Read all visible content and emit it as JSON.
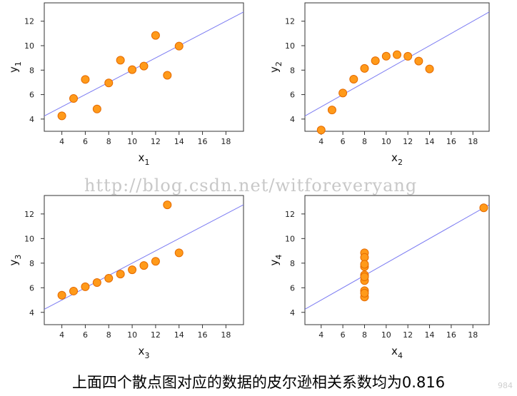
{
  "watermark": "http://blog.csdn.net/witforeveryang",
  "caption": "上面四个散点图对应的数据的皮尔逊相关系数均为0.816",
  "corner_mark": "984",
  "colors": {
    "point_fill": "#ff9a1a",
    "point_stroke": "#e56a00",
    "fit_line": "#7b7bf2"
  },
  "chart_data": [
    {
      "type": "scatter",
      "xlabel": "x",
      "xlabel_sub": "1",
      "ylabel": "y",
      "ylabel_sub": "1",
      "xlim": [
        2.5,
        19.5
      ],
      "ylim": [
        3,
        13.5
      ],
      "xticks": [
        4,
        6,
        8,
        10,
        12,
        14,
        16,
        18
      ],
      "yticks": [
        4,
        6,
        8,
        10,
        12
      ],
      "x": [
        10,
        8,
        13,
        9,
        11,
        14,
        6,
        4,
        12,
        7,
        5
      ],
      "y": [
        8.04,
        6.95,
        7.58,
        8.81,
        8.33,
        9.96,
        7.24,
        4.26,
        10.84,
        4.82,
        5.68
      ],
      "fit": {
        "intercept": 3.0,
        "slope": 0.5
      }
    },
    {
      "type": "scatter",
      "xlabel": "x",
      "xlabel_sub": "2",
      "ylabel": "y",
      "ylabel_sub": "2",
      "xlim": [
        2.5,
        19.5
      ],
      "ylim": [
        3,
        13.5
      ],
      "xticks": [
        4,
        6,
        8,
        10,
        12,
        14,
        16,
        18
      ],
      "yticks": [
        4,
        6,
        8,
        10,
        12
      ],
      "x": [
        10,
        8,
        13,
        9,
        11,
        14,
        6,
        4,
        12,
        7,
        5
      ],
      "y": [
        9.14,
        8.14,
        8.74,
        8.77,
        9.26,
        8.1,
        6.13,
        3.1,
        9.13,
        7.26,
        4.74
      ],
      "fit": {
        "intercept": 3.0,
        "slope": 0.5
      }
    },
    {
      "type": "scatter",
      "xlabel": "x",
      "xlabel_sub": "3",
      "ylabel": "y",
      "ylabel_sub": "3",
      "xlim": [
        2.5,
        19.5
      ],
      "ylim": [
        3,
        13.5
      ],
      "xticks": [
        4,
        6,
        8,
        10,
        12,
        14,
        16,
        18
      ],
      "yticks": [
        4,
        6,
        8,
        10,
        12
      ],
      "x": [
        10,
        8,
        13,
        9,
        11,
        14,
        6,
        4,
        12,
        7,
        5
      ],
      "y": [
        7.46,
        6.77,
        12.74,
        7.11,
        7.81,
        8.84,
        6.08,
        5.39,
        8.15,
        6.42,
        5.73
      ],
      "fit": {
        "intercept": 3.0,
        "slope": 0.5
      }
    },
    {
      "type": "scatter",
      "xlabel": "x",
      "xlabel_sub": "4",
      "ylabel": "y",
      "ylabel_sub": "4",
      "xlim": [
        2.5,
        19.5
      ],
      "ylim": [
        3,
        13.5
      ],
      "xticks": [
        4,
        6,
        8,
        10,
        12,
        14,
        16,
        18
      ],
      "yticks": [
        4,
        6,
        8,
        10,
        12
      ],
      "x": [
        8,
        8,
        8,
        8,
        8,
        8,
        8,
        19,
        8,
        8,
        8
      ],
      "y": [
        6.58,
        5.76,
        7.71,
        8.84,
        8.47,
        7.04,
        5.25,
        12.5,
        5.56,
        7.91,
        6.89
      ],
      "fit": {
        "intercept": 3.0,
        "slope": 0.5
      }
    }
  ]
}
